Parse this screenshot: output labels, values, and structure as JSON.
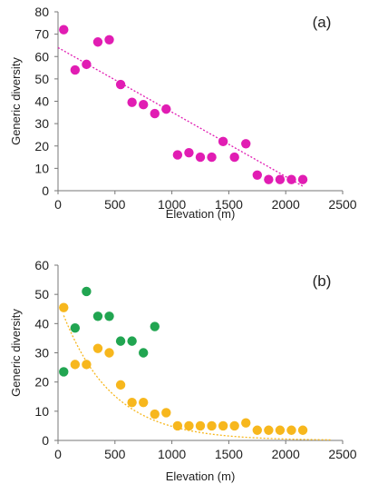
{
  "chart_data": [
    {
      "type": "scatter",
      "panel_label": "(a)",
      "xlabel": "Elevation (m)",
      "ylabel": "Generic diversity",
      "xlim": [
        0,
        2500
      ],
      "ylim": [
        0,
        80
      ],
      "xticks": [
        "0",
        "500",
        "1000",
        "1500",
        "2000",
        "2500"
      ],
      "yticks": [
        "0",
        "10",
        "20",
        "30",
        "40",
        "50",
        "60",
        "70",
        "80"
      ],
      "grid": false,
      "series": [
        {
          "color": "#e11db3",
          "x": [
            50,
            150,
            250,
            350,
            450,
            550,
            650,
            750,
            850,
            950,
            1050,
            1150,
            1250,
            1350,
            1450,
            1550,
            1650,
            1750,
            1850,
            1950,
            2050,
            2150
          ],
          "y": [
            72,
            54,
            56.5,
            66.5,
            67.5,
            47.5,
            39.5,
            38.5,
            34.5,
            36.5,
            16,
            17,
            15,
            15,
            22,
            15,
            21,
            7,
            5,
            5,
            5,
            5
          ]
        }
      ],
      "trendline": {
        "kind": "linear",
        "color": "#e11db3",
        "x": [
          0,
          2150
        ],
        "y": [
          64,
          2
        ]
      }
    },
    {
      "type": "scatter",
      "panel_label": "(b)",
      "xlabel": "Elevation (m)",
      "ylabel": "Generic diversity",
      "xlim": [
        0,
        2500
      ],
      "ylim": [
        0,
        60
      ],
      "xticks": [
        "0",
        "500",
        "1000",
        "1500",
        "2000",
        "2500"
      ],
      "yticks": [
        "0",
        "10",
        "20",
        "30",
        "40",
        "50",
        "60"
      ],
      "grid": false,
      "series": [
        {
          "color": "#21a551",
          "x": [
            50,
            150,
            250,
            350,
            450,
            550,
            650,
            750,
            850
          ],
          "y": [
            23.5,
            38.5,
            51,
            42.5,
            42.5,
            34,
            34,
            30,
            39
          ]
        },
        {
          "color": "#f7b71d",
          "x": [
            50,
            150,
            250,
            350,
            450,
            550,
            650,
            750,
            850,
            950,
            1050,
            1150,
            1250,
            1350,
            1450,
            1550,
            1650,
            1750,
            1850,
            1950,
            2050,
            2150
          ],
          "y": [
            45.5,
            26,
            26,
            31.5,
            30,
            19,
            13,
            13,
            9,
            9.5,
            5,
            5,
            5,
            5,
            5,
            5,
            6,
            3.5,
            3.5,
            3.5,
            3.5,
            3.5
          ]
        }
      ],
      "trendline": {
        "kind": "exponential",
        "color": "#f7b71d",
        "a": 48,
        "b": 0.0023,
        "x": [
          50,
          2400
        ]
      }
    }
  ]
}
